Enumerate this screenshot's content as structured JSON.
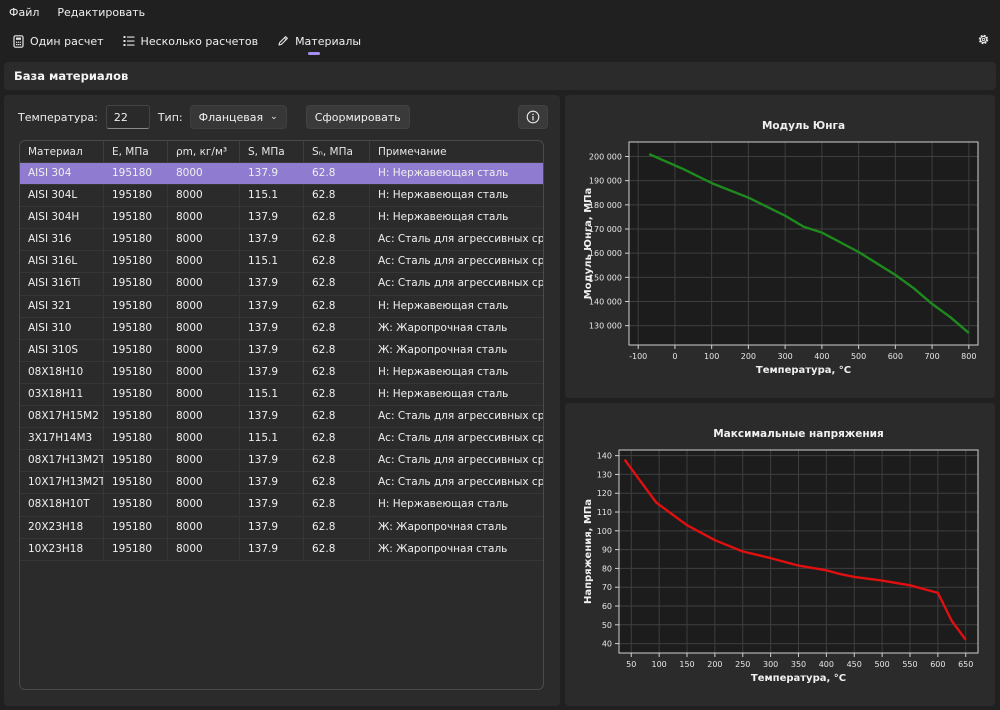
{
  "menu": {
    "file": "Файл",
    "edit": "Редактировать"
  },
  "nav": {
    "single": "Один расчет",
    "multiple": "Несколько расчетов",
    "materials": "Материалы",
    "accent": "#a78cf0"
  },
  "section_title": "База материалов",
  "toolbar": {
    "temp_label": "Температура:",
    "temp_value": "22",
    "type_label": "Тип:",
    "type_value": "Фланцевая",
    "generate_label": "Сформировать",
    "info_icon": "info-icon"
  },
  "table": {
    "headers": [
      "Материал",
      "E, МПа",
      "ρm, кг/м³",
      "S, МПа",
      "Sₙ, МПа",
      "Примечание"
    ],
    "selected_index": 0,
    "rows": [
      [
        "AISI 304",
        "195180",
        "8000",
        "137.9",
        "62.8",
        "Н: Нержавеющая сталь"
      ],
      [
        "AISI 304L",
        "195180",
        "8000",
        "115.1",
        "62.8",
        "Н: Нержавеющая сталь"
      ],
      [
        "AISI 304H",
        "195180",
        "8000",
        "137.9",
        "62.8",
        "Н: Нержавеющая сталь"
      ],
      [
        "AISI 316",
        "195180",
        "8000",
        "137.9",
        "62.8",
        "Ас: Сталь для агрессивных сред"
      ],
      [
        "AISI 316L",
        "195180",
        "8000",
        "115.1",
        "62.8",
        "Ас: Сталь для агрессивных сред"
      ],
      [
        "AISI 316Ti",
        "195180",
        "8000",
        "137.9",
        "62.8",
        "Ас: Сталь для агрессивных сред"
      ],
      [
        "AISI 321",
        "195180",
        "8000",
        "137.9",
        "62.8",
        "Н: Нержавеющая сталь"
      ],
      [
        "AISI 310",
        "195180",
        "8000",
        "137.9",
        "62.8",
        "Ж: Жаропрочная сталь"
      ],
      [
        "AISI 310S",
        "195180",
        "8000",
        "137.9",
        "62.8",
        "Ж: Жаропрочная сталь"
      ],
      [
        "08Х18Н10",
        "195180",
        "8000",
        "137.9",
        "62.8",
        "Н: Нержавеющая сталь"
      ],
      [
        "03Х18Н11",
        "195180",
        "8000",
        "115.1",
        "62.8",
        "Н: Нержавеющая сталь"
      ],
      [
        "08Х17Н15М2",
        "195180",
        "8000",
        "137.9",
        "62.8",
        "Ас: Сталь для агрессивных сред"
      ],
      [
        "3Х17Н14М3",
        "195180",
        "8000",
        "115.1",
        "62.8",
        "Ас: Сталь для агрессивных сред"
      ],
      [
        "08Х17Н13М2Т",
        "195180",
        "8000",
        "137.9",
        "62.8",
        "Ас: Сталь для агрессивных сред"
      ],
      [
        "10Х17Н13М2Т",
        "195180",
        "8000",
        "137.9",
        "62.8",
        "Ас: Сталь для агрессивных сред"
      ],
      [
        "08Х18Н10Т",
        "195180",
        "8000",
        "137.9",
        "62.8",
        "Н: Нержавеющая сталь"
      ],
      [
        "20Х23Н18",
        "195180",
        "8000",
        "137.9",
        "62.8",
        "Ж: Жаропрочная сталь"
      ],
      [
        "10Х23Н18",
        "195180",
        "8000",
        "137.9",
        "62.8",
        "Ж: Жаропрочная сталь"
      ]
    ]
  },
  "chart_data": [
    {
      "type": "line",
      "title": "Модуль Юнга",
      "xlabel": "Температура, °C",
      "ylabel": "Модуль Юнга, МПа",
      "xlim": [
        -125,
        825
      ],
      "ylim": [
        122000,
        206000
      ],
      "xticks": [
        -100,
        0,
        100,
        200,
        300,
        400,
        500,
        600,
        700,
        800
      ],
      "yticks": [
        130000,
        140000,
        150000,
        160000,
        170000,
        180000,
        190000,
        200000
      ],
      "ytick_labels": [
        "130 000",
        "140 000",
        "150 000",
        "160 000",
        "170 000",
        "180 000",
        "190 000",
        "200 000"
      ],
      "grid": true,
      "color": "#1e8a1e",
      "series": [
        {
          "x": [
            -70,
            20,
            100,
            200,
            300,
            350,
            400,
            500,
            600,
            650,
            700,
            750,
            800
          ],
          "y": [
            201000,
            195000,
            189000,
            183000,
            175500,
            171000,
            168500,
            160500,
            151000,
            145500,
            139000,
            133500,
            127000
          ]
        }
      ]
    },
    {
      "type": "line",
      "title": "Максимальные напряжения",
      "xlabel": "Температура, °C",
      "ylabel": "Напряжения, МПа",
      "xlim": [
        28,
        672
      ],
      "ylim": [
        35,
        143
      ],
      "xticks": [
        50,
        100,
        150,
        200,
        250,
        300,
        350,
        400,
        450,
        500,
        550,
        600,
        650
      ],
      "yticks": [
        40,
        50,
        60,
        70,
        80,
        90,
        100,
        110,
        120,
        130,
        140
      ],
      "grid": true,
      "color": "#e01010",
      "series": [
        {
          "x": [
            38,
            70,
            95,
            150,
            200,
            250,
            300,
            350,
            400,
            425,
            450,
            500,
            550,
            600,
            625,
            650
          ],
          "y": [
            137.9,
            125,
            115,
            103,
            95,
            89,
            85.5,
            81.5,
            79,
            77,
            75.5,
            73.5,
            71,
            67,
            52,
            42
          ]
        }
      ]
    }
  ]
}
